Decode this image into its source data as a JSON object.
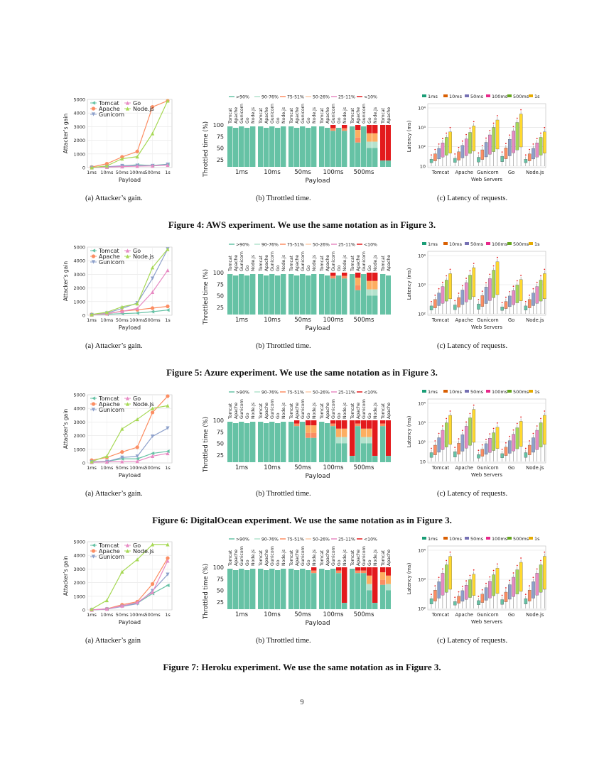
{
  "colors": {
    "tomcat": "#66c2a5",
    "apache": "#fc8d62",
    "gunicorn": "#8da0cb",
    "go": "#e78ac3",
    "node": "#a6d854",
    "node_lat": "#e5c494"
  },
  "page_number": "9",
  "figures": [
    {
      "id": "aws",
      "title": "Figure 4: AWS experiment. We use the same notation as in Figure 3.",
      "captions": [
        "(a)  Attacker’s gain.",
        "(b)  Throttled time.",
        "(c)  Latency of requests."
      ],
      "gain": {
        "ymax": 5000,
        "yticks": [
          "0",
          "1000",
          "2000",
          "3000",
          "4000",
          "5000"
        ],
        "series": [
          {
            "name": "Tomcat",
            "values": [
              0,
              40,
              120,
              200,
              150,
              250
            ]
          },
          {
            "name": "Apache",
            "values": [
              40,
              280,
              780,
              1180,
              4450,
              4900
            ]
          },
          {
            "name": "Gunicorn",
            "values": [
              0,
              60,
              130,
              150,
              130,
              230
            ]
          },
          {
            "name": "Go",
            "values": [
              0,
              30,
              70,
              100,
              120,
              180
            ]
          },
          {
            "name": "Node.js",
            "values": [
              0,
              120,
              650,
              800,
              2500,
              4900
            ]
          }
        ]
      },
      "throttle": [
        [
          1,
          1,
          1,
          1,
          1
        ],
        [
          1,
          1,
          1,
          1,
          1
        ],
        [
          1,
          1,
          1,
          1,
          1
        ],
        [
          1,
          1,
          2,
          1,
          2
        ],
        [
          1,
          3,
          1,
          4,
          4
        ],
        [
          5,
          5,
          1,
          5,
          5
        ]
      ],
      "latency": {
        "yticks": [
          "10",
          "10²",
          "10³",
          "10⁴"
        ]
      }
    },
    {
      "id": "azure",
      "title": "Figure 5: Azure experiment. We use the same notation as in Figure 3.",
      "captions": [
        "(a)  Attacker’s gain.",
        "(b)  Throttled time.",
        "(c)  Latency of requests."
      ],
      "gain": {
        "ymax": 5000,
        "yticks": [
          "0",
          "1000",
          "2000",
          "3000",
          "4000",
          "5000"
        ],
        "series": [
          {
            "name": "Tomcat",
            "values": [
              40,
              70,
              120,
              160,
              260,
              380
            ]
          },
          {
            "name": "Apache",
            "values": [
              60,
              110,
              300,
              400,
              520,
              650
            ]
          },
          {
            "name": "Gunicorn",
            "values": [
              30,
              160,
              500,
              900,
              2700,
              4850
            ]
          },
          {
            "name": "Go",
            "values": [
              30,
              120,
              280,
              500,
              1700,
              3300
            ]
          },
          {
            "name": "Node.js",
            "values": [
              60,
              220,
              620,
              850,
              3500,
              4850
            ]
          }
        ]
      },
      "throttle": [
        [
          1,
          1,
          1,
          1,
          1
        ],
        [
          1,
          1,
          1,
          1,
          1
        ],
        [
          1,
          1,
          1,
          1,
          1
        ],
        [
          1,
          1,
          2,
          1,
          2
        ],
        [
          1,
          3,
          1,
          4,
          4
        ],
        [
          1,
          1,
          5,
          4,
          5
        ]
      ],
      "latency": {
        "yticks": [
          "10²",
          "10³",
          "10⁴"
        ]
      }
    },
    {
      "id": "digitalocean",
      "title": "Figure 6: DigitalOcean experiment. We use the same notation as in Figure 3.",
      "captions": [
        "(a)  Attacker’s gain.",
        "(b)  Throttled time.",
        "(c)  Latency of requests."
      ],
      "gain": {
        "ymax": 5000,
        "yticks": [
          "0",
          "1000",
          "2000",
          "3000",
          "4000",
          "5000"
        ],
        "series": [
          {
            "name": "Tomcat",
            "values": [
              80,
              120,
              300,
              300,
              700,
              850
            ]
          },
          {
            "name": "Apache",
            "values": [
              200,
              400,
              800,
              1150,
              3700,
              4900
            ]
          },
          {
            "name": "Gunicorn",
            "values": [
              80,
              100,
              400,
              480,
              1950,
              2550
            ]
          },
          {
            "name": "Go",
            "values": [
              50,
              80,
              100,
              120,
              500,
              700
            ]
          },
          {
            "name": "Node.js",
            "values": [
              100,
              500,
              2500,
              3200,
              4000,
              4200
            ]
          }
        ]
      },
      "throttle": [
        [
          1,
          1,
          1,
          1,
          1
        ],
        [
          1,
          1,
          1,
          1,
          1
        ],
        [
          1,
          2,
          1,
          3,
          3
        ],
        [
          1,
          1,
          2,
          4,
          4
        ],
        [
          5,
          2,
          4,
          4,
          5
        ],
        [
          2,
          5,
          3,
          4,
          5
        ]
      ],
      "latency": {
        "yticks": [
          "10",
          "10²",
          "10³",
          "10⁴"
        ]
      }
    },
    {
      "id": "heroku",
      "title": "Figure 7: Heroku experiment. We use the same notation as in Figure 3.",
      "captions": [
        "(a)  Attacker’s gain",
        "(b)  Throttled time.",
        "(c)  Latency of requests."
      ],
      "gain": {
        "ymax": 5000,
        "yticks": [
          "0",
          "1000",
          "2000",
          "3000",
          "4000",
          "5000"
        ],
        "series": [
          {
            "name": "Tomcat",
            "values": [
              0,
              60,
              300,
              500,
              1200,
              1800
            ]
          },
          {
            "name": "Apache",
            "values": [
              0,
              80,
              380,
              600,
              1900,
              3800
            ]
          },
          {
            "name": "Gunicorn",
            "values": [
              0,
              50,
              250,
              450,
              1400,
              2600
            ]
          },
          {
            "name": "Go",
            "values": [
              0,
              70,
              300,
              550,
              1300,
              3600
            ]
          },
          {
            "name": "Node.js",
            "values": [
              60,
              700,
              2800,
              3700,
              4800,
              4800
            ]
          }
        ]
      },
      "throttle": [
        [
          1,
          1,
          1,
          1,
          1
        ],
        [
          1,
          1,
          1,
          1,
          1
        ],
        [
          1,
          1,
          1,
          1,
          2
        ],
        [
          1,
          1,
          1,
          2,
          5
        ],
        [
          1,
          2,
          2,
          4,
          5
        ],
        [
          3,
          4,
          5,
          4,
          5
        ]
      ],
      "latency": {
        "yticks": [
          "10²",
          "10³",
          "10⁴"
        ]
      }
    }
  ],
  "chart_common": {
    "payloads": [
      "1ms",
      "10ms",
      "50ms",
      "100ms",
      "500ms",
      "1s"
    ],
    "gain_ylabel": "Attacker’s gain",
    "xlabel": "Payload",
    "throttle_ylabel": "Throttled time (%)",
    "throttle_yticks": [
      "100",
      "75",
      "50",
      "25"
    ],
    "throttle_legend": [
      ">90%",
      "90-76%",
      "75-51%",
      "50-26%",
      "25-11%",
      "<10%"
    ],
    "throttle_legend_colors": [
      "#66c2a5",
      "#b3e2cd",
      "#fc8d62",
      "#fdcdac",
      "#e78ac3",
      "#e31a1c"
    ],
    "servers": [
      "Tomcat",
      "Apache",
      "Gunicorn",
      "Go",
      "Node.js"
    ],
    "latency_legend": [
      "1ms",
      "10ms",
      "50ms",
      "100ms",
      "500ms",
      "1s"
    ],
    "latency_legend_colors": [
      "#1b9e77",
      "#d95f02",
      "#7570b3",
      "#e7298a",
      "#66a61e",
      "#e6ab02"
    ],
    "latency_ylabel": "Latency (ms)",
    "latency_xlabel": "Web Servers"
  }
}
